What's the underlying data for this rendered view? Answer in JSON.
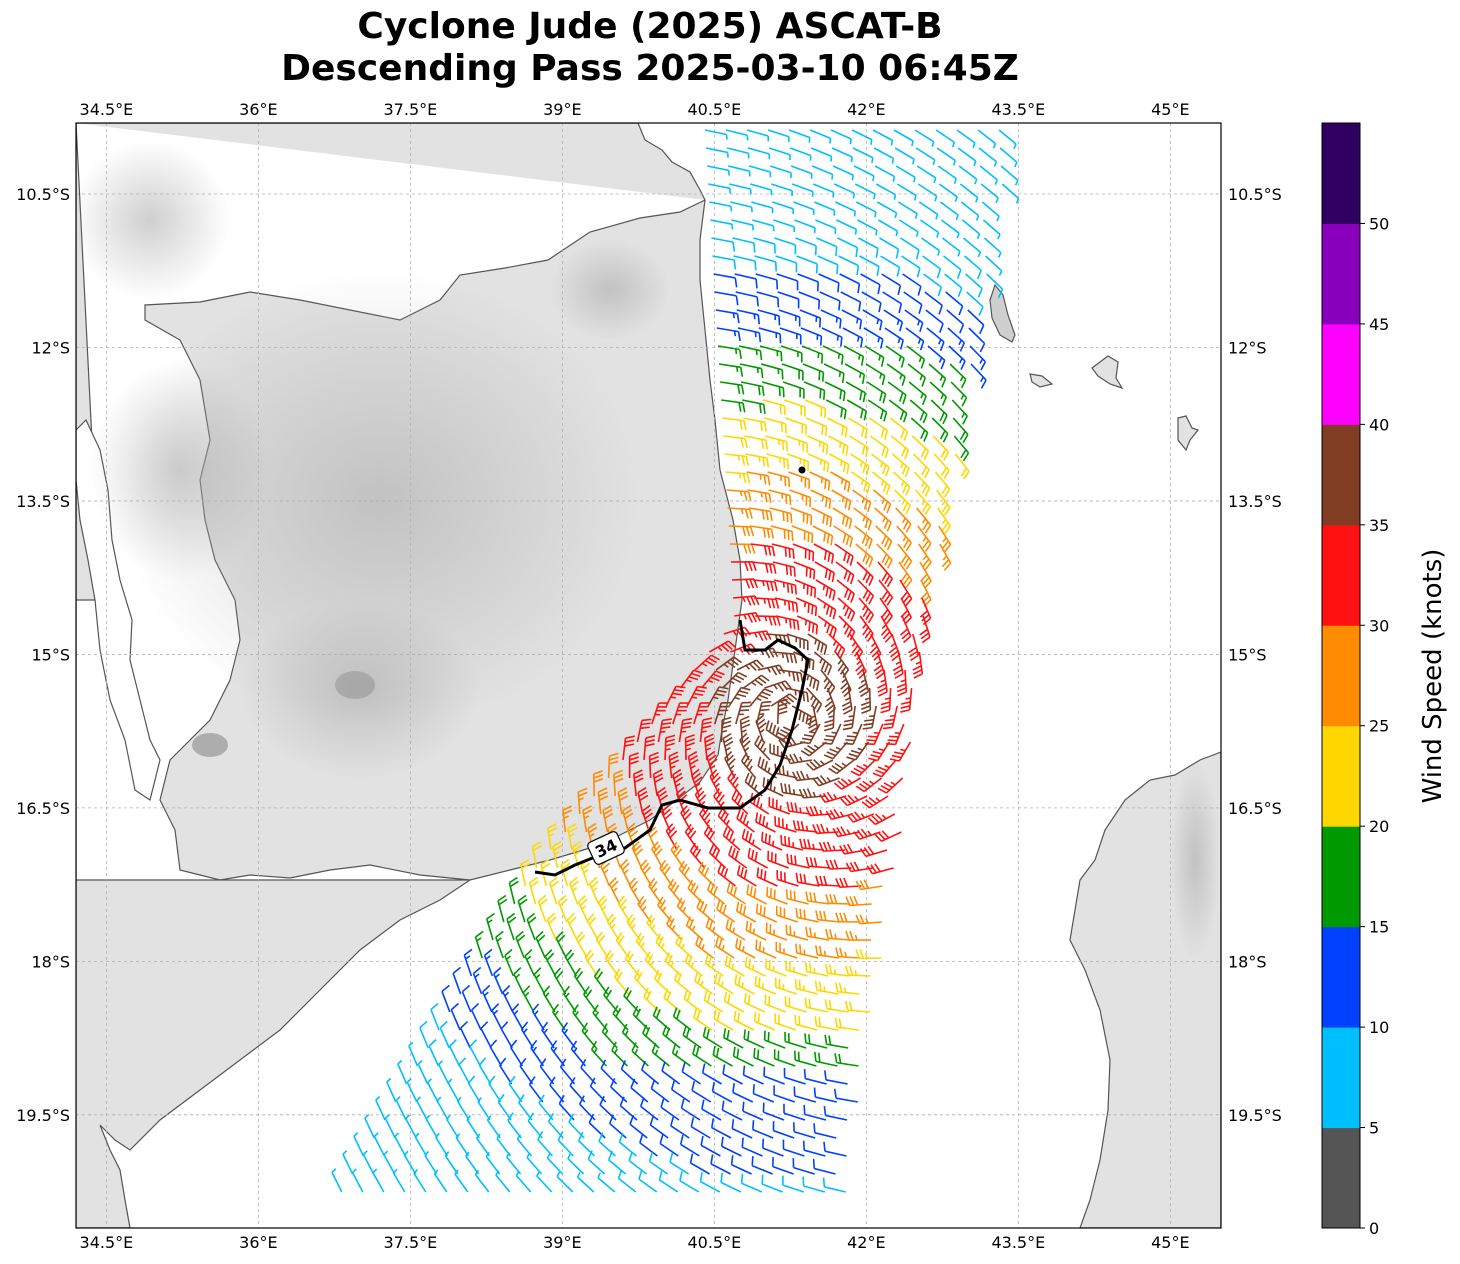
{
  "title": {
    "line1": "Cyclone Jude (2025) ASCAT-B",
    "line2": "Descending Pass 2025-03-10 06:45Z"
  },
  "map": {
    "lon_range": [
      34.2,
      45.5
    ],
    "lat_range": [
      -21.3,
      -10.5
    ],
    "lon_ticks": [
      "34.5°E",
      "36°E",
      "37.5°E",
      "39°E",
      "40.5°E",
      "42°E",
      "43.5°E",
      "45°E"
    ],
    "lon_tick_values": [
      34.5,
      36,
      37.5,
      39,
      40.5,
      42,
      43.5,
      45
    ],
    "lat_ticks": [
      "10.5°S",
      "12°S",
      "13.5°S",
      "15°S",
      "16.5°S",
      "18°S",
      "19.5°S"
    ],
    "lat_tick_values": [
      -10.5,
      -12,
      -13.5,
      -15,
      -16.5,
      -18,
      -19.5
    ],
    "wind_radius_label": "34",
    "colors": {
      "land_base": "#e2e2e2",
      "coastline": "#555555",
      "grid": "#b0b0b0",
      "contour": "#000000"
    }
  },
  "colorbar": {
    "label": "Wind Speed (knots)",
    "ticks": [
      "0",
      "5",
      "10",
      "15",
      "20",
      "25",
      "30",
      "35",
      "40",
      "45",
      "50"
    ],
    "colors": [
      "#555555",
      "#00bfff",
      "#0041ff",
      "#009900",
      "#ffd700",
      "#ff8c00",
      "#ff1111",
      "#803d24",
      "#ff00ff",
      "#8800bb",
      "#2f0060"
    ]
  }
}
